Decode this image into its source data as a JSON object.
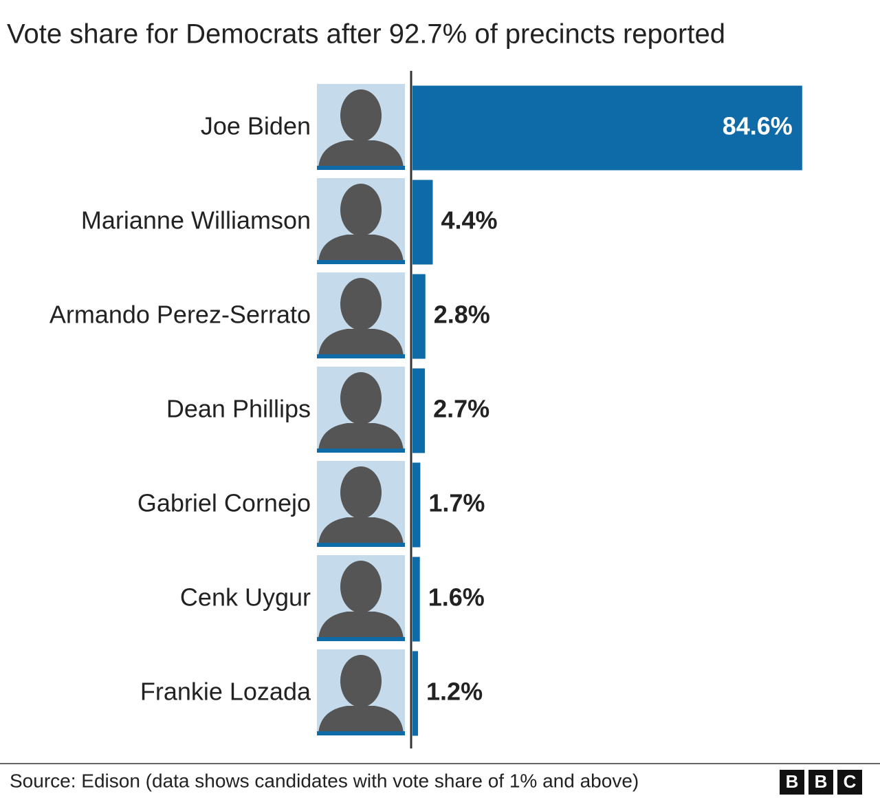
{
  "chart_data": {
    "type": "bar",
    "orientation": "horizontal",
    "title": "Vote share for Democrats after 92.7% of precincts reported",
    "categories": [
      "Joe Biden",
      "Marianne Williamson",
      "Armando Perez-Serrato",
      "Dean Phillips",
      "Gabriel Cornejo",
      "Cenk Uygur",
      "Frankie Lozada"
    ],
    "values": [
      84.6,
      4.4,
      2.8,
      2.7,
      1.7,
      1.6,
      1.2
    ],
    "value_labels": [
      "84.6%",
      "4.4%",
      "2.8%",
      "2.7%",
      "1.7%",
      "1.6%",
      "1.2%"
    ],
    "color": "#0f6ba8",
    "source": "Source: Edison (data shows candidates with vote share of 1% and above)",
    "logo": [
      "B",
      "B",
      "C"
    ]
  }
}
